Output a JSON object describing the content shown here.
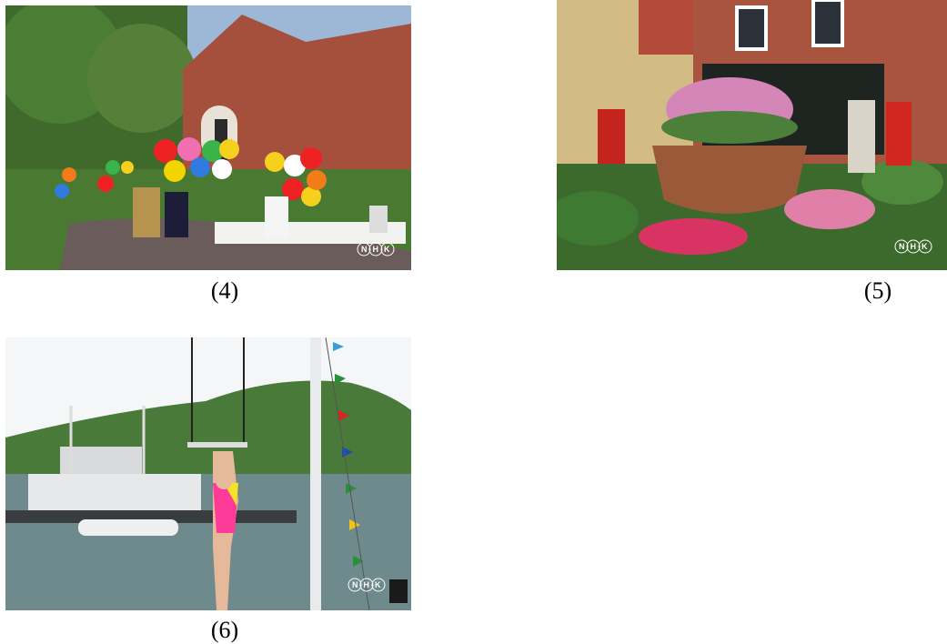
{
  "figures": [
    {
      "caption": "(4)",
      "logo": "NHK"
    },
    {
      "caption": "(5)",
      "logo": "NHK"
    },
    {
      "caption": "(6)",
      "logo": "NHK"
    }
  ]
}
